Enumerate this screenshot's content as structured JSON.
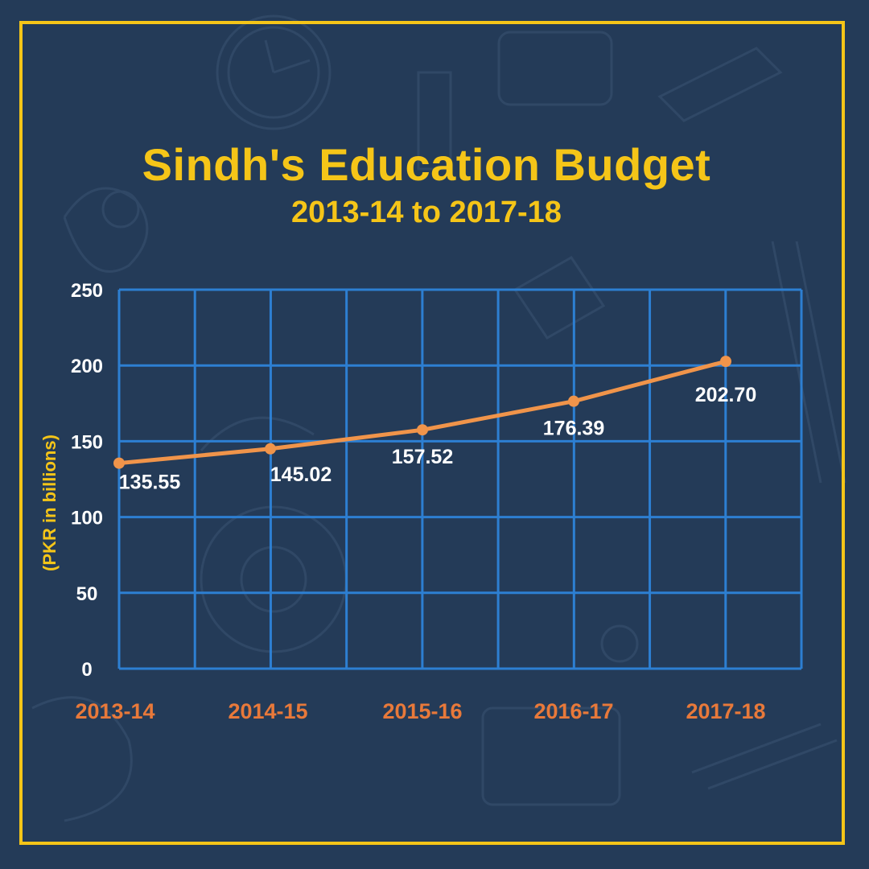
{
  "title": "Sindh's Education Budget",
  "subtitle": "2013-14 to 2017-18",
  "colors": {
    "background": "#243b58",
    "frame": "#f5c518",
    "title": "#f5c518",
    "grid": "#2d7fd2",
    "line": "#f0944a",
    "x_tick": "#e8793a",
    "y_tick": "#ffffff",
    "data_label": "#ffffff"
  },
  "chart_data": {
    "type": "line",
    "title": "Sindh's Education Budget",
    "subtitle": "2013-14 to 2017-18",
    "xlabel": "",
    "ylabel": "(PKR in billions)",
    "categories": [
      "2013-14",
      "2014-15",
      "2015-16",
      "2016-17",
      "2017-18"
    ],
    "values": [
      135.55,
      145.02,
      157.52,
      176.39,
      202.7
    ],
    "data_labels": [
      "135.55",
      "145.02",
      "157.52",
      "176.39",
      "202.70"
    ],
    "y_ticks": [
      "0",
      "50",
      "100",
      "150",
      "200",
      "250"
    ],
    "ylim": [
      0,
      250
    ],
    "grid": true,
    "legend": "none"
  }
}
